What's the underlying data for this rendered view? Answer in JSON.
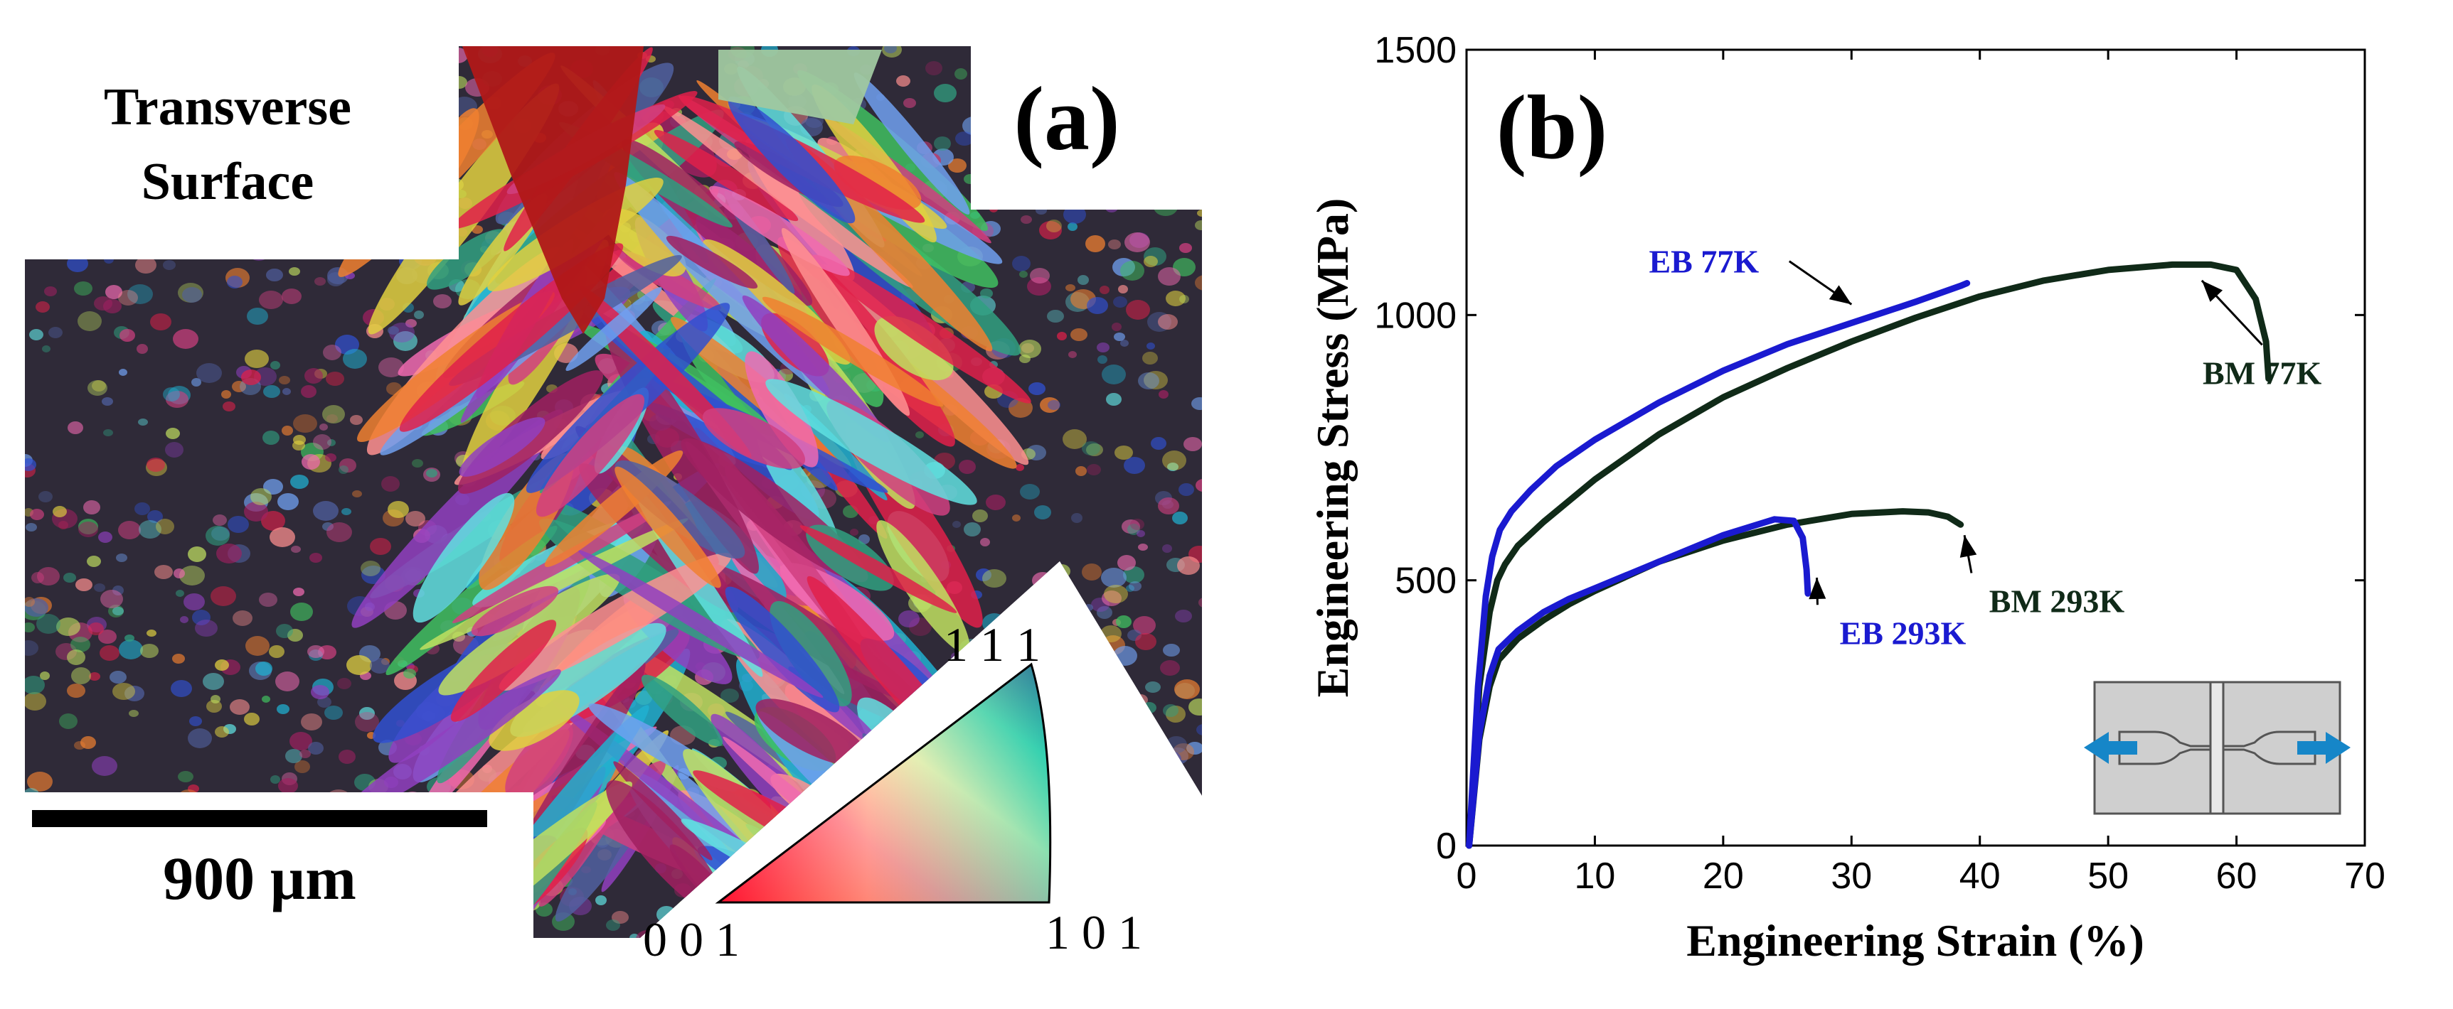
{
  "panel_a": {
    "label": "(a)",
    "surface_line1": "Transverse",
    "surface_line2": "Surface",
    "scale_bar_text": "900 µm",
    "ipf": {
      "corner_001": "0 0 1",
      "corner_101": "1 0 1",
      "corner_111": "1 1 1"
    }
  },
  "chart_data": {
    "type": "line",
    "panel_label": "(b)",
    "xlabel": "Engineering Strain (%)",
    "ylabel": "Engineering Stress (MPa)",
    "xlim": [
      0,
      70
    ],
    "ylim": [
      0,
      1500
    ],
    "xticks": [
      0,
      10,
      20,
      30,
      40,
      50,
      60,
      70
    ],
    "yticks": [
      0,
      500,
      1000,
      1500
    ],
    "series": [
      {
        "name": "BM 77K",
        "color": "#102a18",
        "x": [
          0.2,
          1.0,
          1.8,
          2.4,
          3.0,
          4.0,
          6.0,
          8.0,
          10,
          15,
          20,
          25,
          30,
          35,
          40,
          45,
          50,
          55,
          58,
          60,
          61.5,
          62.3,
          62.5
        ],
        "y": [
          0,
          300,
          440,
          500,
          530,
          565,
          610,
          650,
          690,
          775,
          845,
          900,
          950,
          995,
          1035,
          1065,
          1085,
          1095,
          1095,
          1085,
          1030,
          950,
          880
        ]
      },
      {
        "name": "EB 77K",
        "color": "#1a1ad0",
        "x": [
          0.2,
          0.9,
          1.5,
          2.0,
          2.6,
          3.5,
          5.0,
          7.0,
          10,
          15,
          20,
          25,
          30,
          35,
          38.5,
          39.0
        ],
        "y": [
          0,
          300,
          470,
          545,
          595,
          630,
          670,
          715,
          765,
          835,
          895,
          945,
          985,
          1025,
          1055,
          1060
        ]
      },
      {
        "name": "BM 293K",
        "color": "#102a18",
        "x": [
          0.2,
          1.0,
          1.8,
          2.5,
          4,
          6,
          8,
          10,
          15,
          20,
          25,
          30,
          34,
          36,
          37.5,
          38.5
        ],
        "y": [
          0,
          200,
          300,
          350,
          390,
          425,
          455,
          480,
          535,
          575,
          605,
          625,
          630,
          628,
          620,
          605
        ]
      },
      {
        "name": "EB 293K",
        "color": "#1a1ad0",
        "x": [
          0.2,
          1.0,
          1.8,
          2.5,
          4,
          6,
          8,
          10,
          15,
          20,
          24,
          25.5,
          26.2,
          26.5,
          26.6
        ],
        "y": [
          0,
          210,
          320,
          370,
          405,
          440,
          465,
          485,
          535,
          585,
          615,
          612,
          580,
          520,
          475
        ]
      }
    ],
    "annotations": [
      {
        "text": "EB 77K",
        "color": "#1a1ad0",
        "text_x": 18.5,
        "text_y": 1080,
        "arrow_to_x": 30.0,
        "arrow_to_y": 1020
      },
      {
        "text": "BM 77K",
        "color": "#102a18",
        "text_x": 62.0,
        "text_y": 870,
        "arrow_to_x": 57.3,
        "arrow_to_y": 1065
      },
      {
        "text": "BM 293K",
        "color": "#102a18",
        "text_x": 46.0,
        "text_y": 440,
        "arrow_to_x": 38.8,
        "arrow_to_y": 585
      },
      {
        "text": "EB 293K",
        "color": "#1a1ad0",
        "text_x": 34.0,
        "text_y": 380,
        "arrow_to_x": 27.3,
        "arrow_to_y": 505
      }
    ]
  }
}
